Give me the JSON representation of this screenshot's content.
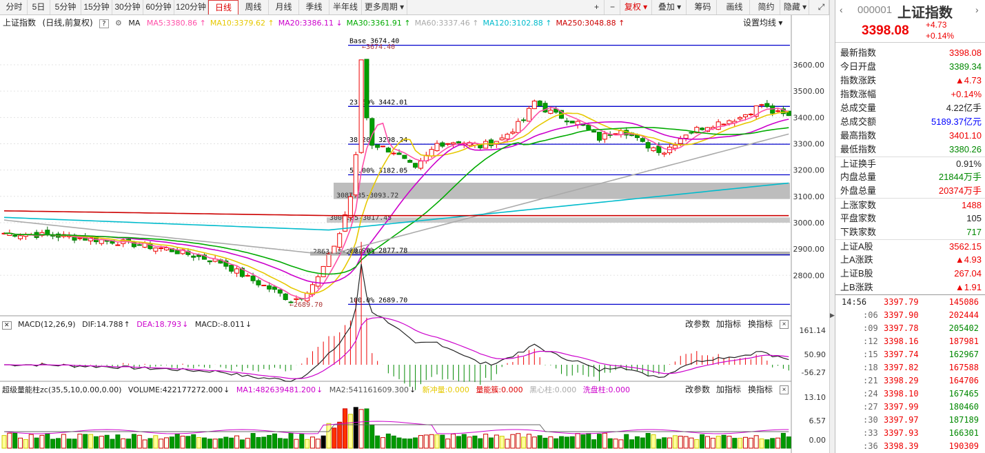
{
  "toolbar": {
    "periods": [
      "分时",
      "5日",
      "5分钟",
      "15分钟",
      "30分钟",
      "60分钟",
      "120分钟",
      "日线",
      "周线",
      "月线",
      "季线",
      "半年线",
      "更多周期"
    ],
    "selected": "日线",
    "controls": [
      "+",
      "−",
      "复权",
      "叠加",
      "筹码",
      "画线",
      "简约",
      "隐藏"
    ]
  },
  "chart_header": {
    "index_name": "上证指数",
    "mode": "(日线,前复权)",
    "help": "?",
    "ma_label": "MA",
    "ma": [
      {
        "name": "MA5",
        "value": "3380.86",
        "color": "#ff4fa8",
        "arrow": "↑"
      },
      {
        "name": "MA10",
        "value": "3379.62",
        "color": "#e6c800",
        "arrow": "↑"
      },
      {
        "name": "MA20",
        "value": "3386.11",
        "color": "#cc00cc",
        "arrow": "↓"
      },
      {
        "name": "MA30",
        "value": "3361.91",
        "color": "#00aa00",
        "arrow": "↑"
      },
      {
        "name": "MA60",
        "value": "3337.46",
        "color": "#aaaaaa",
        "arrow": "↑"
      },
      {
        "name": "MA120",
        "value": "3102.88",
        "color": "#00bbcc",
        "arrow": "↑"
      },
      {
        "name": "MA250",
        "value": "3048.88",
        "color": "#cc0000",
        "arrow": "↑"
      }
    ],
    "settings": "设置均线"
  },
  "chart_data": {
    "type": "candlestick",
    "y_ticks": [
      "3600.00",
      "3500.00",
      "3400.00",
      "3300.00",
      "3200.00",
      "3100.00",
      "3000.00",
      "2900.00",
      "2800.00"
    ],
    "fib_levels": [
      {
        "label": "Base",
        "value": "3674.40",
        "y": 3674.4
      },
      {
        "label": "23.60%",
        "value": "3442.01",
        "y": 3442.01
      },
      {
        "label": "38.20%",
        "value": "3298.24",
        "y": 3298.24
      },
      {
        "label": "50.00%",
        "value": "3182.05",
        "y": 3182.05
      },
      {
        "label": "80.90%",
        "value": "2877.78",
        "y": 2877.78
      },
      {
        "label": "100.0%",
        "value": "2689.70",
        "y": 2689.7
      }
    ],
    "annotations": [
      "3674.40",
      "2689.70",
      "3000.05-3017.45",
      "2863.15-2889.01",
      "3087.35-3093.72"
    ],
    "macd": {
      "label": "MACD(12,26,9)",
      "dif": "DIF:14.788",
      "dea": "DEA:18.793",
      "macd": "MACD:-8.011",
      "ticks": [
        "161.14",
        "50.90",
        "-56.27"
      ]
    },
    "volume": {
      "label": "超级量能柱zc(35,5,10,0.00,0.00)",
      "volume": "VOLUME:422177272.000",
      "ma1": "MA1:482639481.200",
      "ma2": "MA2:541161609.300",
      "xc": "新冲量:0.000",
      "lnj": "量能簇:0.000",
      "hxz": "黑心柱:0.000",
      "xpz": "洗盘柱:0.000",
      "ticks": [
        "13.10",
        "6.57",
        "0.00"
      ]
    }
  },
  "panel_buttons": {
    "params": "改参数",
    "add": "加指标",
    "swap": "换指标",
    "close": "×"
  },
  "right": {
    "code": "000001",
    "name": "上证指数",
    "price": "3398.08",
    "chg": "+4.73",
    "pct": "+0.14%",
    "stats": [
      {
        "l": "最新指数",
        "v": "3398.08",
        "c": "red"
      },
      {
        "l": "今日开盘",
        "v": "3389.34",
        "c": "grn"
      },
      {
        "l": "指数涨跌",
        "v": "▲4.73",
        "c": "red"
      },
      {
        "l": "指数涨幅",
        "v": "+0.14%",
        "c": "red"
      },
      {
        "l": "总成交量",
        "v": "4.22亿手",
        "c": "blk"
      },
      {
        "l": "总成交额",
        "v": "5189.37亿元",
        "c": "blu"
      },
      {
        "l": "最高指数",
        "v": "3401.10",
        "c": "red"
      },
      {
        "l": "最低指数",
        "v": "3380.26",
        "c": "grn"
      },
      {
        "l": "上证换手",
        "v": "0.91%",
        "c": "blk"
      },
      {
        "l": "内盘总量",
        "v": "21844万手",
        "c": "grn"
      },
      {
        "l": "外盘总量",
        "v": "20374万手",
        "c": "red"
      },
      {
        "l": "上涨家数",
        "v": "1488",
        "c": "red"
      },
      {
        "l": "平盘家数",
        "v": "105",
        "c": "blk"
      },
      {
        "l": "下跌家数",
        "v": "717",
        "c": "grn"
      },
      {
        "l": "上证A股",
        "v": "3562.15",
        "c": "red"
      },
      {
        "l": "上A涨跌",
        "v": "▲4.93",
        "c": "red"
      },
      {
        "l": "上证B股",
        "v": "267.04",
        "c": "red"
      },
      {
        "l": "上B涨跌",
        "v": "▲1.91",
        "c": "red"
      }
    ],
    "ticks": [
      {
        "t": "14:56",
        "p": "3397.79",
        "q": "145086",
        "c": "red"
      },
      {
        "t": ":06",
        "p": "3397.90",
        "q": "202444",
        "c": "red"
      },
      {
        "t": ":09",
        "p": "3397.78",
        "q": "205402",
        "c": "grn"
      },
      {
        "t": ":12",
        "p": "3398.16",
        "q": "187981",
        "c": "red"
      },
      {
        "t": ":15",
        "p": "3397.74",
        "q": "162967",
        "c": "grn"
      },
      {
        "t": ":18",
        "p": "3397.82",
        "q": "167588",
        "c": "red"
      },
      {
        "t": ":21",
        "p": "3398.29",
        "q": "164706",
        "c": "red"
      },
      {
        "t": ":24",
        "p": "3398.10",
        "q": "167465",
        "c": "grn"
      },
      {
        "t": ":27",
        "p": "3397.99",
        "q": "180460",
        "c": "grn"
      },
      {
        "t": ":30",
        "p": "3397.97",
        "q": "187189",
        "c": "grn"
      },
      {
        "t": ":33",
        "p": "3397.93",
        "q": "166301",
        "c": "grn"
      },
      {
        "t": ":36",
        "p": "3398.39",
        "q": "190309",
        "c": "red"
      }
    ]
  }
}
